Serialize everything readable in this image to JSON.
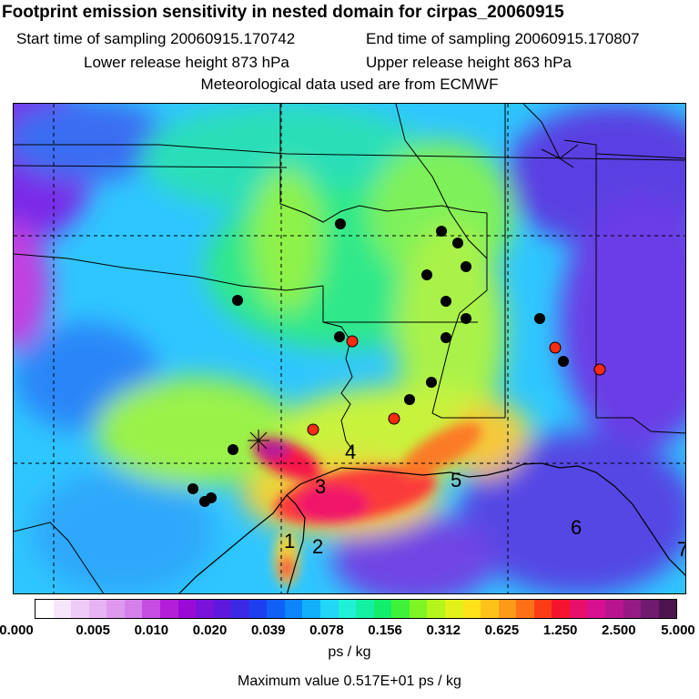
{
  "header": {
    "title": "Footprint emission sensitivity in nested domain for cirpas_20060915",
    "start": "Start time of sampling 20060915.170742",
    "end": "End time of sampling 20060915.170807",
    "lower": "Lower release height  873 hPa",
    "upper": "Upper release height  863 hPa",
    "met": "Meteorological data used are from ECMWF"
  },
  "map": {
    "site_labels": [
      "1",
      "2",
      "3",
      "4",
      "5",
      "6",
      "7"
    ],
    "colors": {
      "background": "#2fbfff",
      "marker_black": "#000000",
      "marker_red": "#ff2a10",
      "border": "#000000"
    }
  },
  "colorbar": {
    "colors": [
      "#ffffff",
      "#f7e6fb",
      "#efccf7",
      "#e6b3f3",
      "#de99ef",
      "#d580ea",
      "#c64de2",
      "#b31fd8",
      "#9a0ad6",
      "#7a12da",
      "#5d1ade",
      "#3a2ae6",
      "#1e3ff0",
      "#1060f6",
      "#0a86fa",
      "#12b0fb",
      "#22d6f6",
      "#1ff0d6",
      "#14f0a2",
      "#12ee6a",
      "#3ef23a",
      "#7ef525",
      "#b6f51c",
      "#e4f01a",
      "#fde21a",
      "#fdc21a",
      "#fd9a18",
      "#fd7016",
      "#fb3c16",
      "#f5142e",
      "#e80f6a",
      "#d70f90",
      "#b81490",
      "#941a84",
      "#701a70",
      "#4e1450"
    ],
    "tick_labels": [
      "0.000",
      "0.005",
      "0.010",
      "0.020",
      "0.039",
      "0.078",
      "0.156",
      "0.312",
      "0.625",
      "1.250",
      "2.500",
      "5.000"
    ],
    "unit": "ps / kg",
    "max_value": "Maximum value  0.517E+01 ps / kg"
  }
}
